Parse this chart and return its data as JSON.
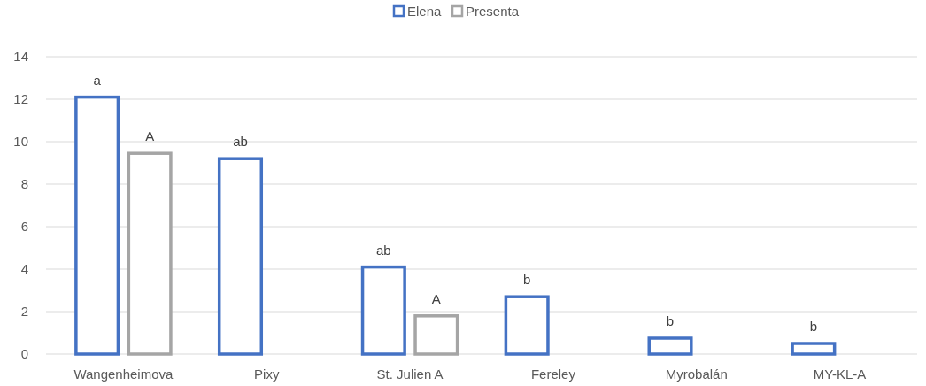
{
  "chart_data": {
    "type": "bar",
    "categories": [
      "Wangenheimova",
      "Pixy",
      "St. Julien A",
      "Fereley",
      "Myrobalán",
      "MY-KL-A"
    ],
    "series": [
      {
        "name": "Elena",
        "color": "#4472c4",
        "values": [
          12.1,
          9.2,
          4.1,
          2.7,
          0.75,
          0.5
        ]
      },
      {
        "name": "Presenta",
        "color": "#a5a5a5",
        "values": [
          9.45,
          null,
          1.8,
          null,
          null,
          null
        ]
      }
    ],
    "ylim": [
      0,
      14
    ],
    "yticks": [
      0,
      2,
      4,
      6,
      8,
      10,
      12,
      14
    ],
    "grid": "y",
    "legend": "top",
    "annotations": [
      "a",
      "A",
      "ab",
      "ab",
      "A",
      "b",
      "b",
      "b"
    ]
  }
}
